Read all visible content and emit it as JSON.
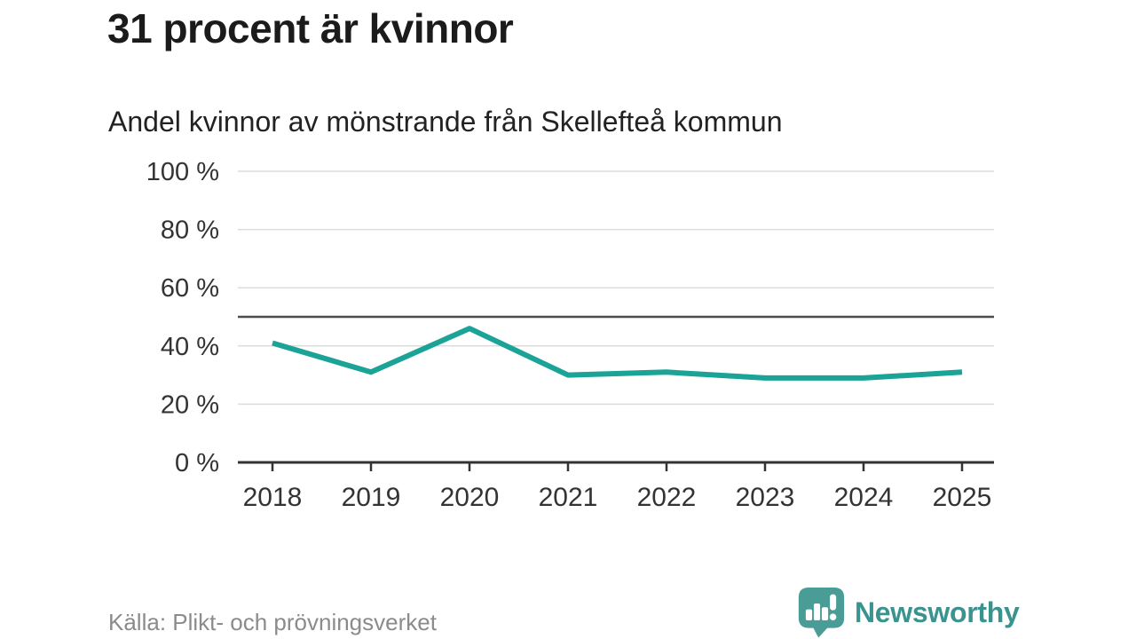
{
  "page": {
    "title": "31 procent är kvinnor",
    "subtitle": "Andel kvinnor av mönstrande från Skellefteå kommun",
    "source": "Källa: Plikt- och prövningsverket",
    "brand": {
      "name": "Newsworthy",
      "logo_icon": "bar-chart-speech-bubble-icon"
    }
  },
  "colors": {
    "line": "#1aa396",
    "reference_line": "#4d4d4d",
    "gridline": "#dcdcdc",
    "axis": "#333333",
    "tick_text": "#333333",
    "title_text": "#1b1b1b",
    "subtitle_text": "#222222",
    "source_text": "#8b8b8b",
    "brand_teal": "#3a938e",
    "brand_icon_teal": "#4a9d97"
  },
  "chart_data": {
    "type": "line",
    "title": "31 procent är kvinnor",
    "subtitle": "Andel kvinnor av mönstrande från Skellefteå kommun",
    "categories": [
      "2018",
      "2019",
      "2020",
      "2021",
      "2022",
      "2023",
      "2024",
      "2025"
    ],
    "series": [
      {
        "name": "Andel kvinnor av mönstrande",
        "values": [
          41,
          31,
          46,
          30,
          31,
          29,
          29,
          31
        ]
      }
    ],
    "unit": "%",
    "xlabel": "",
    "ylabel": "",
    "ylim": [
      0,
      100
    ],
    "yticks": [
      0,
      20,
      40,
      60,
      80,
      100
    ],
    "ytick_labels": [
      "0 %",
      "20 %",
      "40 %",
      "60 %",
      "80 %",
      "100 %"
    ],
    "reference_line": 50,
    "grid": "horizontal",
    "legend": "none",
    "source": "Källa: Plikt- och prövningsverket"
  }
}
